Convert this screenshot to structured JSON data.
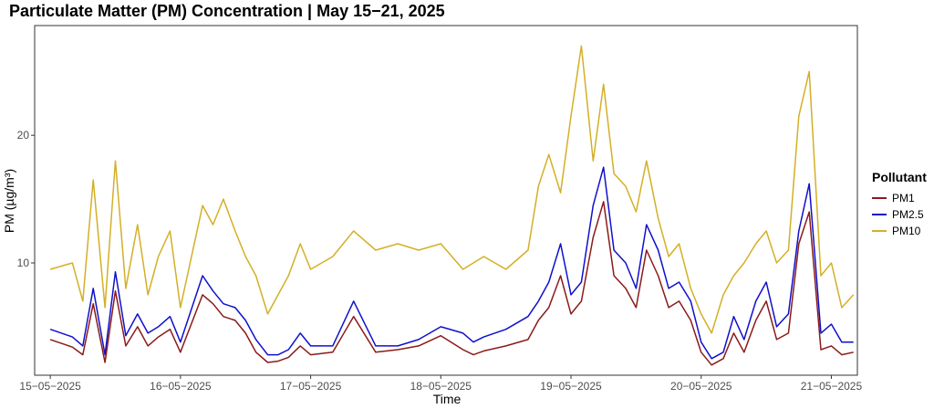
{
  "chart_data": {
    "type": "line",
    "title": "Particulate Matter (PM) Concentration | May 15−21, 2025",
    "xlabel": "Time",
    "ylabel": "PM (µg/m³)",
    "x_ticks": [
      "15−05−2025",
      "16−05−2025",
      "17−05−2025",
      "18−05−2025",
      "19−05−2025",
      "20−05−2025",
      "21−05−2025"
    ],
    "y_ticks": [
      10,
      20
    ],
    "ylim": [
      1.2,
      28.6
    ],
    "x_range_days": [
      15,
      21.2
    ],
    "grid": false,
    "legend": {
      "title": "Pollutant",
      "placement": "right"
    },
    "x": [
      15.0,
      15.17,
      15.25,
      15.33,
      15.42,
      15.5,
      15.58,
      15.67,
      15.75,
      15.83,
      15.92,
      16.0,
      16.17,
      16.25,
      16.33,
      16.42,
      16.5,
      16.58,
      16.67,
      16.75,
      16.83,
      16.92,
      17.0,
      17.17,
      17.33,
      17.5,
      17.67,
      17.83,
      18.0,
      18.17,
      18.25,
      18.33,
      18.5,
      18.67,
      18.75,
      18.83,
      18.92,
      19.0,
      19.08,
      19.17,
      19.25,
      19.33,
      19.42,
      19.5,
      19.58,
      19.67,
      19.75,
      19.83,
      19.92,
      20.0,
      20.08,
      20.17,
      20.25,
      20.33,
      20.42,
      20.5,
      20.58,
      20.67,
      20.75,
      20.83,
      20.92,
      21.0,
      21.08,
      21.17
    ],
    "series": [
      {
        "name": "PM1",
        "color": "#8b1a1a",
        "values": [
          4.0,
          3.4,
          2.8,
          6.8,
          2.2,
          7.8,
          3.5,
          5.0,
          3.5,
          4.2,
          4.8,
          3.0,
          7.5,
          6.8,
          5.8,
          5.5,
          4.5,
          3.0,
          2.2,
          2.3,
          2.6,
          3.5,
          2.8,
          3.0,
          5.8,
          3.0,
          3.2,
          3.5,
          4.3,
          3.2,
          2.8,
          3.1,
          3.5,
          4.0,
          5.5,
          6.5,
          9.0,
          6.0,
          7.0,
          12.0,
          14.8,
          9.0,
          8.0,
          6.5,
          11.0,
          9.0,
          6.5,
          7.0,
          5.5,
          3.0,
          2.0,
          2.5,
          4.5,
          3.0,
          5.5,
          7.0,
          4.0,
          4.5,
          11.5,
          14.0,
          3.2,
          3.5,
          2.8,
          3.0
        ]
      },
      {
        "name": "PM2.5",
        "color": "#1010cc",
        "values": [
          4.8,
          4.2,
          3.5,
          8.0,
          2.8,
          9.3,
          4.3,
          6.0,
          4.5,
          5.0,
          5.8,
          3.8,
          9.0,
          7.8,
          6.8,
          6.5,
          5.5,
          4.0,
          2.8,
          2.8,
          3.2,
          4.5,
          3.5,
          3.5,
          7.0,
          3.5,
          3.5,
          4.0,
          5.0,
          4.5,
          3.8,
          4.2,
          4.8,
          5.8,
          7.0,
          8.5,
          11.5,
          7.5,
          8.5,
          14.5,
          17.5,
          11.0,
          10.0,
          8.0,
          13.0,
          11.0,
          8.0,
          8.5,
          7.0,
          3.8,
          2.5,
          3.0,
          5.8,
          4.0,
          7.0,
          8.5,
          5.0,
          6.0,
          12.5,
          16.2,
          4.5,
          5.2,
          3.8,
          3.8
        ]
      },
      {
        "name": "PM10",
        "color": "#d4af26",
        "values": [
          9.5,
          10.0,
          7.0,
          16.5,
          6.5,
          18.0,
          8.0,
          13.0,
          7.5,
          10.5,
          12.5,
          6.5,
          14.5,
          13.0,
          15.0,
          12.5,
          10.5,
          9.0,
          6.0,
          7.5,
          9.0,
          11.5,
          9.5,
          10.5,
          12.5,
          11.0,
          11.5,
          11.0,
          11.5,
          9.5,
          10.0,
          10.5,
          9.5,
          11.0,
          16.0,
          18.5,
          15.5,
          21.5,
          27.0,
          18.0,
          24.0,
          17.0,
          16.0,
          14.0,
          18.0,
          13.5,
          10.5,
          11.5,
          8.0,
          6.0,
          4.5,
          7.5,
          9.0,
          10.0,
          11.5,
          12.5,
          10.0,
          11.0,
          21.5,
          25.0,
          9.0,
          10.0,
          6.5,
          7.5
        ]
      }
    ]
  }
}
